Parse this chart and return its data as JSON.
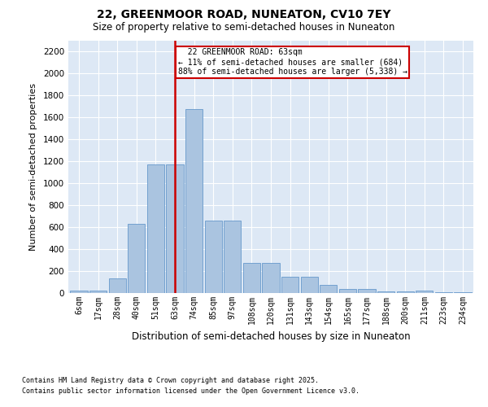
{
  "title1": "22, GREENMOOR ROAD, NUNEATON, CV10 7EY",
  "title2": "Size of property relative to semi-detached houses in Nuneaton",
  "xlabel": "Distribution of semi-detached houses by size in Nuneaton",
  "ylabel": "Number of semi-detached properties",
  "categories": [
    "6sqm",
    "17sqm",
    "28sqm",
    "40sqm",
    "51sqm",
    "63sqm",
    "74sqm",
    "85sqm",
    "97sqm",
    "108sqm",
    "120sqm",
    "131sqm",
    "143sqm",
    "154sqm",
    "165sqm",
    "177sqm",
    "188sqm",
    "200sqm",
    "211sqm",
    "223sqm",
    "234sqm"
  ],
  "values": [
    20,
    25,
    130,
    630,
    1175,
    1175,
    1680,
    660,
    660,
    275,
    275,
    150,
    150,
    75,
    40,
    40,
    15,
    15,
    20,
    5,
    5
  ],
  "bar_color": "#aac4e0",
  "bar_edge_color": "#6699cc",
  "marker_idx": 5,
  "marker_label": "22 GREENMOOR ROAD: 63sqm",
  "marker_smaller_pct": "11%",
  "marker_smaller_n": "684",
  "marker_larger_pct": "88%",
  "marker_larger_n": "5,338",
  "marker_color": "#cc0000",
  "annotation_box_color": "white",
  "annotation_box_edge": "#cc0000",
  "ylim": [
    0,
    2300
  ],
  "yticks": [
    0,
    200,
    400,
    600,
    800,
    1000,
    1200,
    1400,
    1600,
    1800,
    2000,
    2200
  ],
  "bg_color": "#dde8f5",
  "footer1": "Contains HM Land Registry data © Crown copyright and database right 2025.",
  "footer2": "Contains public sector information licensed under the Open Government Licence v3.0."
}
